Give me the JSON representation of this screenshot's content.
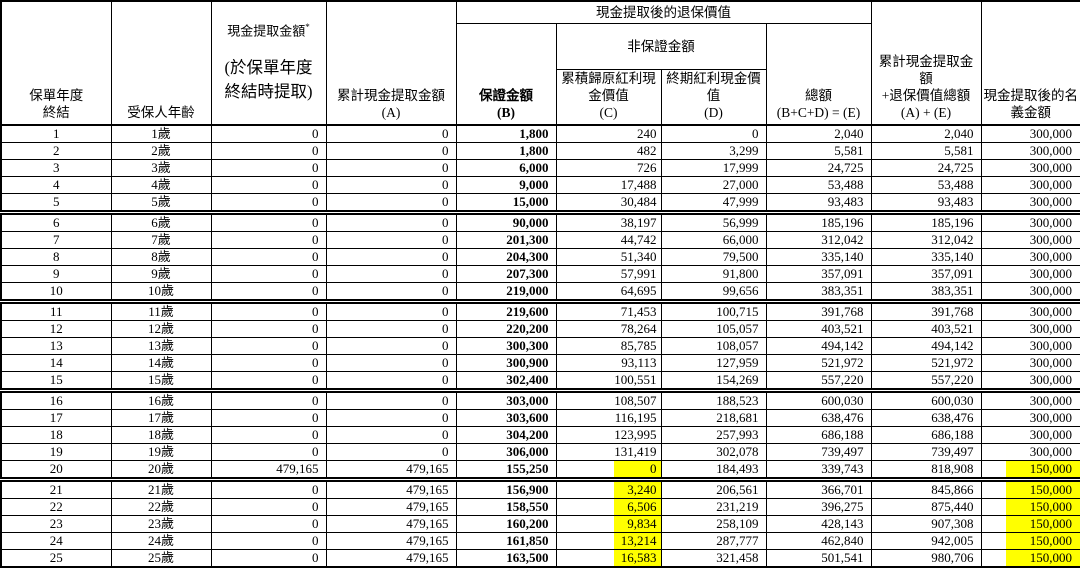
{
  "colors": {
    "highlight": "#FFFF00",
    "border": "#000000",
    "background": "#FFFFFF"
  },
  "table": {
    "headers": {
      "policy_year": "保單年度\n終結",
      "insured_age": "受保人年齡",
      "withdrawal_title": "現金提取金額",
      "withdrawal_asterisk": "*",
      "withdrawal_note": "(於保單年度\n終結時提取)",
      "accumulated_withdrawal": "累計現金提取金額\n(A)",
      "surrender_after_withdrawal": "現金提取後的退保價值",
      "guaranteed": "保證金額\n(B)",
      "non_guaranteed": "非保證金額",
      "reversionary": "累積歸原紅利現\n金價值\n(C)",
      "terminal": "終期紅利現金價\n值\n(D)",
      "total": "總額\n(B+C+D) = (E)",
      "acc_plus_surrender": "累計現金提取金\n額\n+退保價值總額\n(A) + (E)",
      "nominal_after_withdrawal": "現金提取後的名\n義金額"
    },
    "columns": [
      {
        "name": "policy-year",
        "align": "center",
        "bold": false
      },
      {
        "name": "insured-age",
        "align": "center",
        "bold": false
      },
      {
        "name": "cash-withdrawal",
        "align": "right",
        "bold": false
      },
      {
        "name": "accumulated-withdrawal",
        "align": "right",
        "bold": false
      },
      {
        "name": "guaranteed-amount",
        "align": "right",
        "bold": true
      },
      {
        "name": "reversionary",
        "align": "right",
        "bold": false
      },
      {
        "name": "terminal",
        "align": "right",
        "bold": false
      },
      {
        "name": "total",
        "align": "right",
        "bold": false
      },
      {
        "name": "acc-plus-total",
        "align": "right",
        "bold": false
      },
      {
        "name": "nominal",
        "align": "right",
        "bold": false
      }
    ],
    "group_start_rows": [
      6,
      11,
      16,
      21
    ],
    "highlights": {
      "rows": [
        20,
        21,
        22,
        23,
        24,
        25
      ],
      "columns": [
        "reversionary",
        "nominal"
      ]
    },
    "rows": [
      [
        "1",
        "1歲",
        "0",
        "0",
        "1,800",
        "240",
        "0",
        "2,040",
        "2,040",
        "300,000"
      ],
      [
        "2",
        "2歲",
        "0",
        "0",
        "1,800",
        "482",
        "3,299",
        "5,581",
        "5,581",
        "300,000"
      ],
      [
        "3",
        "3歲",
        "0",
        "0",
        "6,000",
        "726",
        "17,999",
        "24,725",
        "24,725",
        "300,000"
      ],
      [
        "4",
        "4歲",
        "0",
        "0",
        "9,000",
        "17,488",
        "27,000",
        "53,488",
        "53,488",
        "300,000"
      ],
      [
        "5",
        "5歲",
        "0",
        "0",
        "15,000",
        "30,484",
        "47,999",
        "93,483",
        "93,483",
        "300,000"
      ],
      [
        "6",
        "6歲",
        "0",
        "0",
        "90,000",
        "38,197",
        "56,999",
        "185,196",
        "185,196",
        "300,000"
      ],
      [
        "7",
        "7歲",
        "0",
        "0",
        "201,300",
        "44,742",
        "66,000",
        "312,042",
        "312,042",
        "300,000"
      ],
      [
        "8",
        "8歲",
        "0",
        "0",
        "204,300",
        "51,340",
        "79,500",
        "335,140",
        "335,140",
        "300,000"
      ],
      [
        "9",
        "9歲",
        "0",
        "0",
        "207,300",
        "57,991",
        "91,800",
        "357,091",
        "357,091",
        "300,000"
      ],
      [
        "10",
        "10歲",
        "0",
        "0",
        "219,000",
        "64,695",
        "99,656",
        "383,351",
        "383,351",
        "300,000"
      ],
      [
        "11",
        "11歲",
        "0",
        "0",
        "219,600",
        "71,453",
        "100,715",
        "391,768",
        "391,768",
        "300,000"
      ],
      [
        "12",
        "12歲",
        "0",
        "0",
        "220,200",
        "78,264",
        "105,057",
        "403,521",
        "403,521",
        "300,000"
      ],
      [
        "13",
        "13歲",
        "0",
        "0",
        "300,300",
        "85,785",
        "108,057",
        "494,142",
        "494,142",
        "300,000"
      ],
      [
        "14",
        "14歲",
        "0",
        "0",
        "300,900",
        "93,113",
        "127,959",
        "521,972",
        "521,972",
        "300,000"
      ],
      [
        "15",
        "15歲",
        "0",
        "0",
        "302,400",
        "100,551",
        "154,269",
        "557,220",
        "557,220",
        "300,000"
      ],
      [
        "16",
        "16歲",
        "0",
        "0",
        "303,000",
        "108,507",
        "188,523",
        "600,030",
        "600,030",
        "300,000"
      ],
      [
        "17",
        "17歲",
        "0",
        "0",
        "303,600",
        "116,195",
        "218,681",
        "638,476",
        "638,476",
        "300,000"
      ],
      [
        "18",
        "18歲",
        "0",
        "0",
        "304,200",
        "123,995",
        "257,993",
        "686,188",
        "686,188",
        "300,000"
      ],
      [
        "19",
        "19歲",
        "0",
        "0",
        "306,000",
        "131,419",
        "302,078",
        "739,497",
        "739,497",
        "300,000"
      ],
      [
        "20",
        "20歲",
        "479,165",
        "479,165",
        "155,250",
        "0",
        "184,493",
        "339,743",
        "818,908",
        "150,000"
      ],
      [
        "21",
        "21歲",
        "0",
        "479,165",
        "156,900",
        "3,240",
        "206,561",
        "366,701",
        "845,866",
        "150,000"
      ],
      [
        "22",
        "22歲",
        "0",
        "479,165",
        "158,550",
        "6,506",
        "231,219",
        "396,275",
        "875,440",
        "150,000"
      ],
      [
        "23",
        "23歲",
        "0",
        "479,165",
        "160,200",
        "9,834",
        "258,109",
        "428,143",
        "907,308",
        "150,000"
      ],
      [
        "24",
        "24歲",
        "0",
        "479,165",
        "161,850",
        "13,214",
        "287,777",
        "462,840",
        "942,005",
        "150,000"
      ],
      [
        "25",
        "25歲",
        "0",
        "479,165",
        "163,500",
        "16,583",
        "321,458",
        "501,541",
        "980,706",
        "150,000"
      ]
    ]
  }
}
